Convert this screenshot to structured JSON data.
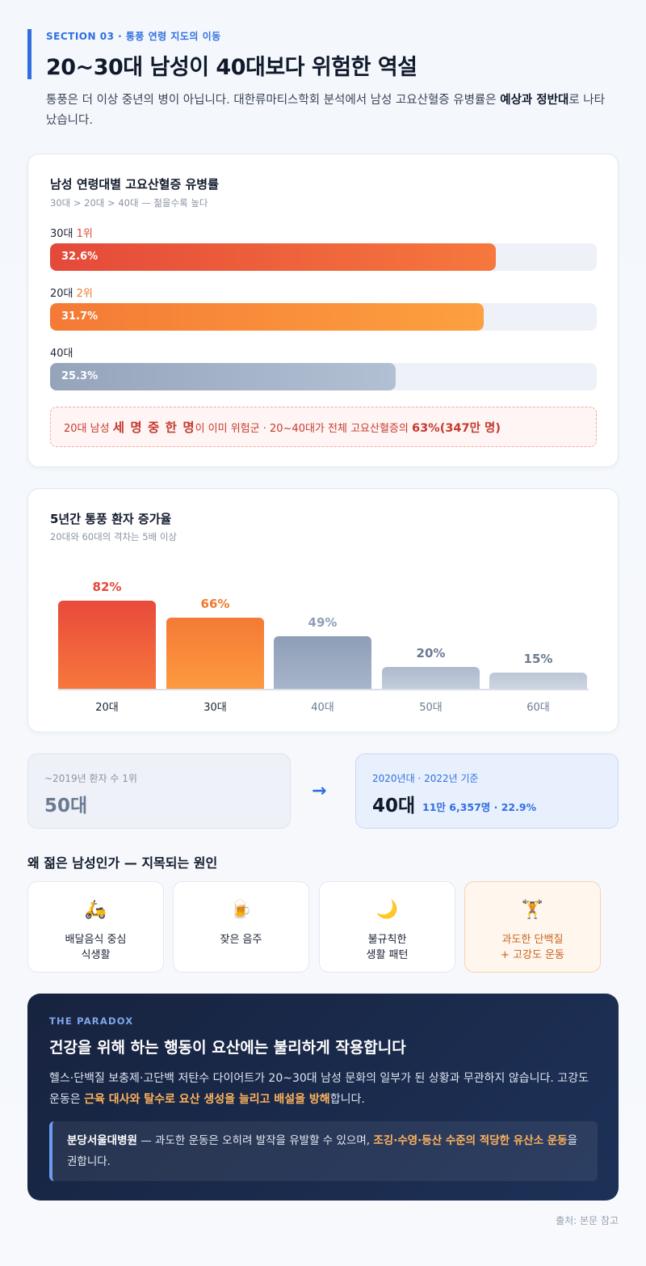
{
  "header": {
    "eyebrow": "SECTION 03 · 통풍 연령 지도의 이동",
    "title": "20~30대 남성이 40대보다 위험한 역설",
    "intro_before": "통풍은 더 이상 중년의 병이 아닙니다. 대한류마티스학회 분석에서 남성 고요산혈증 유병률은 ",
    "intro_bold": "예상과 정반대",
    "intro_after": "로 나타났습니다."
  },
  "prevalence": {
    "title": "남성 연령대별 고요산혈증 유병률",
    "subtitle": "30대 > 20대 > 40대 — 젊을수록 높다",
    "rows": [
      {
        "age": "30대",
        "rank": "1위",
        "value": 32.6,
        "label": "32.6%"
      },
      {
        "age": "20대",
        "rank": "2위",
        "value": 31.7,
        "label": "31.7%"
      },
      {
        "age": "40대",
        "rank": "",
        "value": 25.3,
        "label": "25.3%"
      }
    ],
    "note": {
      "pre": "20대 남성 ",
      "big": "세 명 중 한 명",
      "mid": "이 이미 위험군 · 20~40대가 전체 고요산혈증의 ",
      "bold": "63%(347만 명)"
    }
  },
  "chart_data": {
    "type": "bar",
    "title": "5년간 통풍 환자 증가율",
    "subtitle": "20대와 60대의 격차는 5배 이상",
    "categories": [
      "20대",
      "30대",
      "40대",
      "50대",
      "60대"
    ],
    "values": [
      82,
      66,
      49,
      20,
      15
    ],
    "value_labels": [
      "82%",
      "66%",
      "49%",
      "20%",
      "15%"
    ],
    "ylim": [
      0,
      100
    ],
    "colors": [
      "#e4493a",
      "#f07a2e",
      "#8f9fb8",
      "#b4c0d1",
      "#c3ccd9"
    ]
  },
  "shift": {
    "left_label": "~2019년 환자 수 1위",
    "left_value": "50대",
    "arrow": "→",
    "right_label": "2020년대 · 2022년 기준",
    "right_value": "40대",
    "right_extra": "11만 6,357명 · 22.9%"
  },
  "causes": {
    "title": "왜 젊은 남성인가 — 지목되는 원인",
    "items": [
      {
        "icon": "🛵",
        "icon_name": "scooter-icon",
        "label": "배달음식 중심\n식생활"
      },
      {
        "icon": "🍺",
        "icon_name": "beer-icon",
        "label": "잦은 음주"
      },
      {
        "icon": "🌙",
        "icon_name": "moon-icon",
        "label": "불규칙한\n생활 패턴"
      },
      {
        "icon": "🏋",
        "icon_name": "weightlifting-icon",
        "label": "과도한 단백질\n+ 고강도 운동"
      }
    ]
  },
  "paradox": {
    "eyebrow": "THE PARADOX",
    "title": "건강을 위해 하는 행동이 요산에는 불리하게 작용합니다",
    "body_pre": "헬스·단백질 보충제·고단백 저탄수 다이어트가 20~30대 남성 문화의 일부가 된 상황과 무관하지 않습니다. 고강도 운동은 ",
    "body_hl": "근육 대사와 탈수로 요산 생성을 늘리고 배설을 방해",
    "body_post": "합니다.",
    "quote_source": "분당서울대병원",
    "quote_mid": " — 과도한 운동은 오히려 발작을 유발할 수 있으며, ",
    "quote_hl": "조깅·수영·등산 수준의 적당한 유산소 운동",
    "quote_post": "을 권합니다."
  },
  "source": "출처: 본문 참고"
}
